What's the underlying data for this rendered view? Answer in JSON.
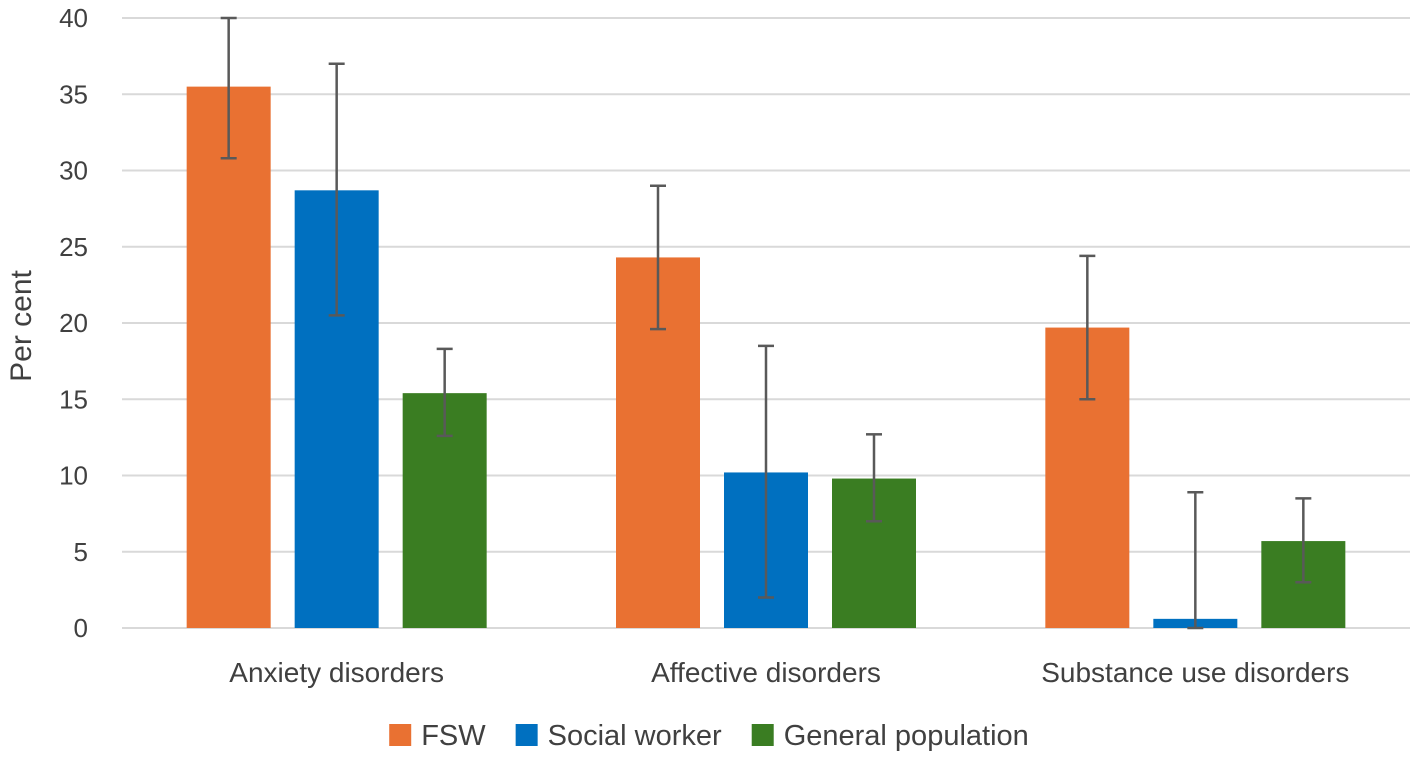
{
  "chart_data": {
    "type": "bar",
    "title": "",
    "xlabel": "",
    "ylabel": "Per cent",
    "ylim": [
      0,
      40
    ],
    "yticks": [
      0,
      5,
      10,
      15,
      20,
      25,
      30,
      35,
      40
    ],
    "grid": true,
    "legend_position": "bottom",
    "categories": [
      "Anxiety disorders",
      "Affective disorders",
      "Substance use disorders"
    ],
    "series": [
      {
        "name": "FSW",
        "color": "#E97132",
        "values": [
          35.5,
          24.3,
          19.7
        ],
        "err_low": [
          30.8,
          19.6,
          15.0
        ],
        "err_high": [
          40.0,
          29.0,
          24.4
        ]
      },
      {
        "name": "Social worker",
        "color": "#0070C0",
        "values": [
          28.7,
          10.2,
          0.6
        ],
        "err_low": [
          20.5,
          2.0,
          0.0
        ],
        "err_high": [
          37.0,
          18.5,
          8.9
        ]
      },
      {
        "name": "General population",
        "color": "#3A7D22",
        "values": [
          15.4,
          9.8,
          5.7
        ],
        "err_low": [
          12.6,
          7.0,
          3.0
        ],
        "err_high": [
          18.3,
          12.7,
          8.5
        ]
      }
    ]
  }
}
